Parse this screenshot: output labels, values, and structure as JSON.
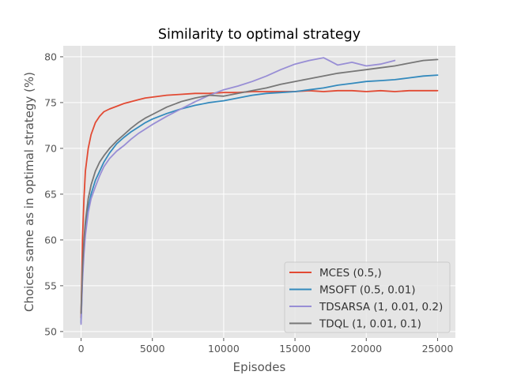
{
  "chart_data": {
    "type": "line",
    "title": "Similarity to optimal strategy",
    "xlabel": "Episodes",
    "ylabel": "Choices same as in optimal strategy (%)",
    "xlim": [
      -1250,
      26250
    ],
    "ylim": [
      49.3,
      81.2
    ],
    "xticks": [
      0,
      5000,
      10000,
      15000,
      20000,
      25000
    ],
    "xtick_labels": [
      "0",
      "5000",
      "10000",
      "15000",
      "20000",
      "25000"
    ],
    "yticks": [
      50,
      55,
      60,
      65,
      70,
      75,
      80
    ],
    "ytick_labels": [
      "50",
      "55",
      "60",
      "65",
      "70",
      "75",
      "80"
    ],
    "grid": true,
    "legend_position": "lower-right",
    "series": [
      {
        "name": "MCES (0.5,)",
        "color": "#e24a33",
        "x": [
          0,
          100,
          200,
          300,
          500,
          700,
          1000,
          1300,
          1600,
          2000,
          2500,
          3000,
          3500,
          4000,
          4500,
          5000,
          6000,
          7000,
          8000,
          9000,
          10000,
          11000,
          12000,
          13000,
          14000,
          15000,
          16000,
          17000,
          18000,
          19000,
          20000,
          21000,
          22000,
          23000,
          24000,
          25000
        ],
        "values": [
          51.5,
          60.0,
          64.5,
          67.5,
          70.0,
          71.5,
          72.8,
          73.5,
          74.0,
          74.3,
          74.6,
          74.9,
          75.1,
          75.3,
          75.5,
          75.6,
          75.8,
          75.9,
          76.0,
          76.0,
          76.1,
          76.1,
          76.2,
          76.2,
          76.2,
          76.2,
          76.3,
          76.2,
          76.3,
          76.3,
          76.2,
          76.3,
          76.2,
          76.3,
          76.3,
          76.3
        ]
      },
      {
        "name": "MSOFT (0.5, 0.01)",
        "color": "#348abd",
        "x": [
          0,
          100,
          200,
          300,
          500,
          700,
          1000,
          1300,
          1600,
          2000,
          2500,
          3000,
          3500,
          4000,
          4500,
          5000,
          6000,
          7000,
          8000,
          9000,
          10000,
          11000,
          12000,
          13000,
          14000,
          15000,
          16000,
          17000,
          18000,
          19000,
          20000,
          21000,
          22000,
          23000,
          24000,
          25000
        ],
        "values": [
          51.0,
          56.0,
          59.0,
          61.0,
          63.5,
          65.0,
          66.5,
          67.5,
          68.5,
          69.5,
          70.5,
          71.2,
          71.8,
          72.3,
          72.8,
          73.2,
          73.8,
          74.3,
          74.7,
          75.0,
          75.2,
          75.5,
          75.8,
          76.0,
          76.1,
          76.2,
          76.4,
          76.6,
          76.9,
          77.1,
          77.3,
          77.4,
          77.5,
          77.7,
          77.9,
          78.0
        ]
      },
      {
        "name": "TDSARSA (1, 0.01, 0.2)",
        "color": "#988ed5",
        "x": [
          0,
          100,
          200,
          300,
          500,
          700,
          1000,
          1300,
          1600,
          2000,
          2500,
          3000,
          3500,
          4000,
          4500,
          5000,
          6000,
          7000,
          8000,
          9000,
          10000,
          11000,
          12000,
          13000,
          14000,
          15000,
          16000,
          17000,
          17500,
          18000,
          19000,
          20000,
          21000,
          22000
        ],
        "values": [
          50.8,
          55.5,
          58.5,
          60.5,
          63.0,
          64.5,
          65.8,
          67.0,
          68.0,
          68.9,
          69.7,
          70.3,
          71.0,
          71.6,
          72.1,
          72.6,
          73.5,
          74.3,
          75.1,
          75.8,
          76.4,
          76.8,
          77.3,
          77.9,
          78.6,
          79.2,
          79.6,
          79.9,
          79.5,
          79.1,
          79.4,
          79.0,
          79.2,
          79.6
        ]
      },
      {
        "name": "TDQL (1, 0.01, 0.1)",
        "color": "#777777",
        "x": [
          0,
          100,
          200,
          300,
          500,
          700,
          1000,
          1300,
          1600,
          2000,
          2500,
          3000,
          3500,
          4000,
          4500,
          5000,
          6000,
          7000,
          8000,
          9000,
          10000,
          11000,
          12000,
          13000,
          14000,
          15000,
          16000,
          17000,
          18000,
          19000,
          20000,
          21000,
          22000,
          23000,
          24000,
          25000
        ],
        "values": [
          52.0,
          57.0,
          60.0,
          62.0,
          64.5,
          66.0,
          67.5,
          68.5,
          69.2,
          70.0,
          70.8,
          71.5,
          72.2,
          72.8,
          73.3,
          73.7,
          74.5,
          75.1,
          75.5,
          75.8,
          75.7,
          76.0,
          76.3,
          76.6,
          77.0,
          77.3,
          77.6,
          77.9,
          78.2,
          78.4,
          78.6,
          78.8,
          79.0,
          79.3,
          79.6,
          79.7
        ]
      }
    ]
  }
}
